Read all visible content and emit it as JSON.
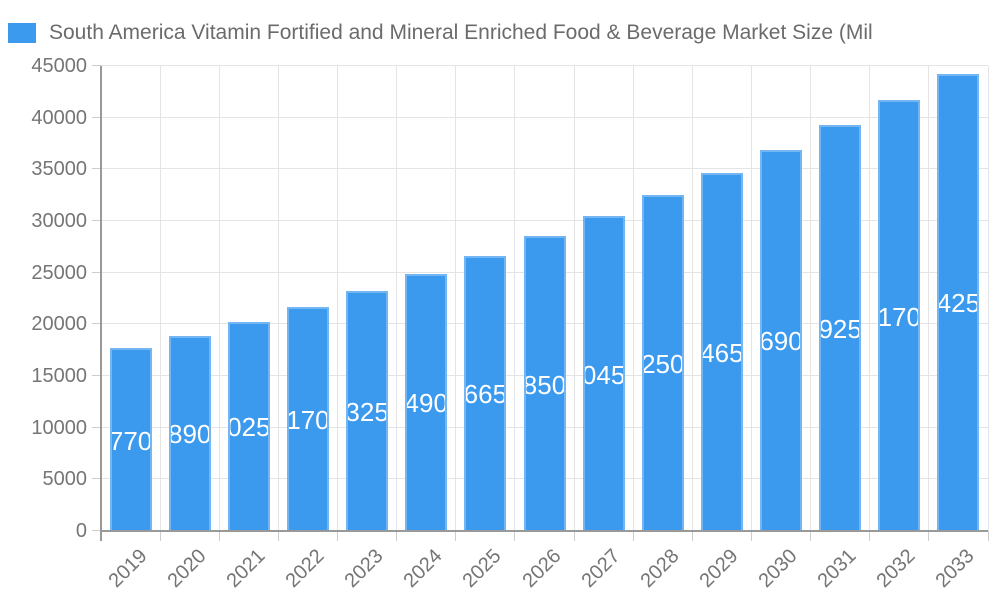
{
  "legend": {
    "swatch_icon": "legend-color-box"
  },
  "chart_data": {
    "type": "bar",
    "title": "South America Vitamin Fortified and Mineral Enriched Food & Beverage Market Size (Mil",
    "categories": [
      "2019",
      "2020",
      "2021",
      "2022",
      "2023",
      "2024",
      "2025",
      "2026",
      "2027",
      "2028",
      "2029",
      "2030",
      "2031",
      "2032",
      "2033"
    ],
    "values": [
      17705,
      18905,
      20255,
      21705,
      23255,
      24905,
      26655,
      28505,
      30455,
      32505,
      34655,
      36905,
      39255,
      41705,
      44255
    ],
    "value_labels_visible_clipped": [
      "770",
      "890",
      "025",
      "170",
      "325",
      "490",
      "665",
      "850",
      "045",
      "250",
      "465",
      "690",
      "925",
      "170",
      "425"
    ],
    "xlabel": "",
    "ylabel": "",
    "ylim": [
      0,
      45000
    ],
    "yticks": [
      0,
      5000,
      10000,
      15000,
      20000,
      25000,
      30000,
      35000,
      40000,
      45000
    ],
    "grid": true,
    "legend_position": "top-left",
    "x_label_rotation_deg": -45
  },
  "colors": {
    "bar_fill": "#3B99EE",
    "bar_border": "#74B6F3",
    "value_label": "#FFFFFF",
    "gridline": "#E4E4E4",
    "axis_line": "#999999",
    "tick_mark": "#CCCCCC",
    "tick_text": "#757575",
    "title_text": "#6B6B6B",
    "background": "#FFFFFF"
  }
}
